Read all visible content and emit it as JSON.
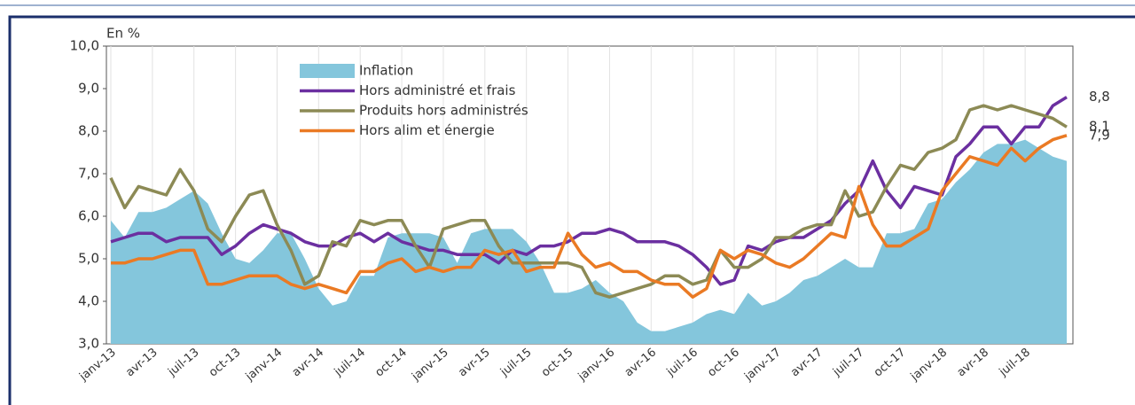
{
  "chart_data": {
    "type": "line",
    "y_unit_label": "En %",
    "categories": [
      "janv-13",
      null,
      null,
      "avr-13",
      null,
      null,
      "juil-13",
      null,
      null,
      "oct-13",
      null,
      null,
      "janv-14",
      null,
      null,
      "avr-14",
      null,
      null,
      "juil-14",
      null,
      null,
      "oct-14",
      null,
      null,
      "janv-15",
      null,
      null,
      "avr-15",
      null,
      null,
      "juil-15",
      null,
      null,
      "oct-15",
      null,
      null,
      "janv-16",
      null,
      null,
      "avr-16",
      null,
      null,
      "juil-16",
      null,
      null,
      "oct-16",
      null,
      null,
      "janv-17",
      null,
      null,
      "avr-17",
      null,
      null,
      "juil-17",
      null,
      null,
      "oct-17",
      null,
      null,
      "janv-18",
      null,
      null,
      "avr-18",
      null,
      null,
      "juil-18",
      null,
      null,
      null
    ],
    "ylim": [
      3,
      10
    ],
    "yticks": [
      {
        "value": 3,
        "label": "3,0"
      },
      {
        "value": 4,
        "label": "4,0"
      },
      {
        "value": 5,
        "label": "5,0"
      },
      {
        "value": 6,
        "label": "6,0"
      },
      {
        "value": 7,
        "label": "7,0"
      },
      {
        "value": 8,
        "label": "8,0"
      },
      {
        "value": 9,
        "label": "9,0"
      },
      {
        "value": 10,
        "label": "10,0"
      }
    ],
    "grid": true,
    "legend": "top-left",
    "series": [
      {
        "name": "Inflation",
        "style": "area",
        "color": "#84c6dc",
        "values": [
          5.9,
          5.5,
          6.1,
          6.1,
          6.2,
          6.4,
          6.6,
          6.3,
          5.6,
          5.0,
          4.9,
          5.2,
          5.6,
          5.6,
          5.0,
          4.3,
          3.9,
          4.0,
          4.6,
          4.6,
          5.5,
          5.6,
          5.6,
          5.6,
          5.5,
          4.9,
          5.6,
          5.7,
          5.7,
          5.7,
          5.4,
          4.9,
          4.2,
          4.2,
          4.3,
          4.5,
          4.2,
          4.0,
          3.5,
          3.3,
          3.3,
          3.4,
          3.5,
          3.7,
          3.8,
          3.7,
          4.2,
          3.9,
          4.0,
          4.2,
          4.5,
          4.6,
          4.8,
          5.0,
          4.8,
          4.8,
          5.6,
          5.6,
          5.7,
          6.3,
          6.4,
          6.8,
          7.1,
          7.5,
          7.7,
          7.7,
          7.8,
          7.6,
          7.4,
          7.3
        ]
      },
      {
        "name": "Hors administré et frais",
        "style": "line",
        "color": "#6b2fa0",
        "end_label": "8,8",
        "values": [
          5.4,
          5.5,
          5.6,
          5.6,
          5.4,
          5.5,
          5.5,
          5.5,
          5.1,
          5.3,
          5.6,
          5.8,
          5.7,
          5.6,
          5.4,
          5.3,
          5.3,
          5.5,
          5.6,
          5.4,
          5.6,
          5.4,
          5.3,
          5.2,
          5.2,
          5.1,
          5.1,
          5.1,
          4.9,
          5.2,
          5.1,
          5.3,
          5.3,
          5.4,
          5.6,
          5.6,
          5.7,
          5.6,
          5.4,
          5.4,
          5.4,
          5.3,
          5.1,
          4.8,
          4.4,
          4.5,
          5.3,
          5.2,
          5.4,
          5.5,
          5.5,
          5.7,
          5.9,
          6.3,
          6.6,
          7.3,
          6.6,
          6.2,
          6.7,
          6.6,
          6.5,
          7.4,
          7.7,
          8.1,
          8.1,
          7.7,
          8.1,
          8.1,
          8.6,
          8.8
        ]
      },
      {
        "name": "Produits hors administrés",
        "style": "line",
        "color": "#8c8a55",
        "end_label": "8,1",
        "values": [
          6.9,
          6.2,
          6.7,
          6.6,
          6.5,
          7.1,
          6.6,
          5.7,
          5.4,
          6.0,
          6.5,
          6.6,
          5.8,
          5.2,
          4.4,
          4.6,
          5.4,
          5.3,
          5.9,
          5.8,
          5.9,
          5.9,
          5.3,
          4.8,
          5.7,
          5.8,
          5.9,
          5.9,
          5.3,
          4.9,
          4.9,
          4.9,
          4.9,
          4.9,
          4.8,
          4.2,
          4.1,
          4.2,
          4.3,
          4.4,
          4.6,
          4.6,
          4.4,
          4.5,
          5.2,
          4.8,
          4.8,
          5.0,
          5.5,
          5.5,
          5.7,
          5.8,
          5.8,
          6.6,
          6.0,
          6.1,
          6.7,
          7.2,
          7.1,
          7.5,
          7.6,
          7.8,
          8.5,
          8.6,
          8.5,
          8.6,
          8.5,
          8.4,
          8.3,
          8.1
        ]
      },
      {
        "name": "Hors alim et énergie",
        "style": "line",
        "color": "#ea7a24",
        "end_label": "7,9",
        "values": [
          4.9,
          4.9,
          5.0,
          5.0,
          5.1,
          5.2,
          5.2,
          4.4,
          4.4,
          4.5,
          4.6,
          4.6,
          4.6,
          4.4,
          4.3,
          4.4,
          4.3,
          4.2,
          4.7,
          4.7,
          4.9,
          5.0,
          4.7,
          4.8,
          4.7,
          4.8,
          4.8,
          5.2,
          5.1,
          5.2,
          4.7,
          4.8,
          4.8,
          5.6,
          5.1,
          4.8,
          4.9,
          4.7,
          4.7,
          4.5,
          4.4,
          4.4,
          4.1,
          4.3,
          5.2,
          5.0,
          5.2,
          5.1,
          4.9,
          4.8,
          5.0,
          5.3,
          5.6,
          5.5,
          6.7,
          5.8,
          5.3,
          5.3,
          5.5,
          5.7,
          6.6,
          7.0,
          7.4,
          7.3,
          7.2,
          7.6,
          7.3,
          7.6,
          7.8,
          7.9
        ]
      }
    ]
  }
}
